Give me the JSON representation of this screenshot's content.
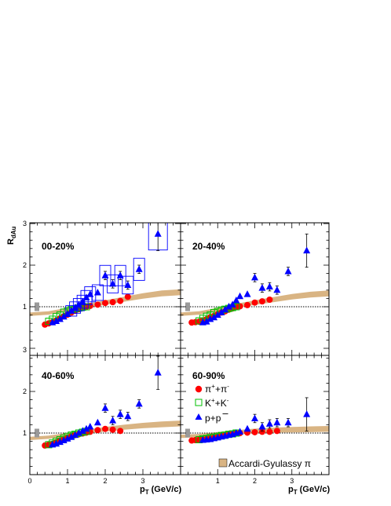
{
  "y_axis_title": "R",
  "y_axis_title_sub": "dAu",
  "x_axis_title": "p",
  "x_axis_title_sub": "T",
  "x_axis_title_unit": "(GeV/c)",
  "chart_data": [
    {
      "type": "scatter",
      "title": "00-20%",
      "xlim": [
        0,
        4.0
      ],
      "ylim": [
        0,
        3.25
      ],
      "x_ticks": [
        1,
        2,
        3
      ],
      "y_ticks": [
        1,
        2,
        3
      ],
      "reference_line": 1,
      "series": [
        {
          "name": "π⁺+π⁻",
          "marker": "circle",
          "color": "#ff0000",
          "x": [
            0.4,
            0.5,
            0.6,
            0.7,
            0.8,
            0.9,
            1.0,
            1.1,
            1.2,
            1.3,
            1.4,
            1.5,
            1.6,
            1.8,
            2.0,
            2.2,
            2.4,
            2.6
          ],
          "y": [
            0.57,
            0.6,
            0.63,
            0.67,
            0.72,
            0.77,
            0.81,
            0.86,
            0.9,
            0.94,
            0.97,
            1.0,
            1.02,
            1.05,
            1.09,
            1.11,
            1.14,
            1.24
          ]
        },
        {
          "name": "K⁺+K⁻",
          "marker": "open-square",
          "color": "#00c000",
          "x": [
            0.5,
            0.6,
            0.7,
            0.8,
            0.9,
            1.0,
            1.1,
            1.2,
            1.3,
            1.4,
            1.5
          ],
          "y": [
            0.65,
            0.7,
            0.76,
            0.8,
            0.87,
            0.9,
            0.93,
            0.95,
            0.97,
            0.99,
            1.0
          ]
        },
        {
          "name": "p+p̄",
          "marker": "triangle",
          "color": "#0000ff",
          "x": [
            0.6,
            0.7,
            0.8,
            0.9,
            1.0,
            1.1,
            1.2,
            1.3,
            1.4,
            1.5,
            1.6,
            1.8,
            2.0,
            2.2,
            2.4,
            2.6,
            2.9,
            3.4
          ],
          "y": [
            0.62,
            0.65,
            0.7,
            0.76,
            0.82,
            0.9,
            0.98,
            1.05,
            1.12,
            1.22,
            1.3,
            1.34,
            1.75,
            1.55,
            1.75,
            1.52,
            1.9,
            2.75
          ]
        }
      ]
    },
    {
      "type": "scatter",
      "title": "20-40%",
      "xlim": [
        0,
        4.0
      ],
      "ylim": [
        0,
        3.25
      ],
      "x_ticks": [
        1,
        2,
        3
      ],
      "y_ticks": [
        1,
        2,
        3
      ],
      "reference_line": 1,
      "series": [
        {
          "name": "π⁺+π⁻",
          "marker": "circle",
          "color": "#ff0000",
          "x": [
            0.3,
            0.4,
            0.5,
            0.6,
            0.7,
            0.8,
            0.9,
            1.0,
            1.1,
            1.2,
            1.3,
            1.4,
            1.5,
            1.6,
            1.8,
            2.0,
            2.2,
            2.4
          ],
          "y": [
            0.62,
            0.63,
            0.64,
            0.67,
            0.7,
            0.75,
            0.78,
            0.82,
            0.86,
            0.89,
            0.93,
            0.96,
            0.99,
            1.01,
            1.04,
            1.1,
            1.13,
            1.17
          ]
        },
        {
          "name": "K⁺+K⁻",
          "marker": "open-square",
          "color": "#00c000",
          "x": [
            0.5,
            0.6,
            0.7,
            0.8,
            0.9,
            1.0,
            1.1,
            1.2,
            1.3,
            1.4,
            1.5
          ],
          "y": [
            0.66,
            0.72,
            0.77,
            0.8,
            0.86,
            0.89,
            0.92,
            0.94,
            0.96,
            0.98,
            1.0
          ]
        },
        {
          "name": "p+p̄",
          "marker": "triangle",
          "color": "#0000ff",
          "x": [
            0.6,
            0.7,
            0.8,
            0.9,
            1.0,
            1.1,
            1.2,
            1.3,
            1.4,
            1.5,
            1.6,
            1.8,
            2.0,
            2.2,
            2.4,
            2.6,
            2.9,
            3.4
          ],
          "y": [
            0.62,
            0.64,
            0.7,
            0.74,
            0.8,
            0.86,
            0.93,
            1.0,
            1.05,
            1.15,
            1.25,
            1.3,
            1.7,
            1.45,
            1.48,
            1.4,
            1.85,
            2.35
          ]
        }
      ]
    },
    {
      "type": "scatter",
      "title": "40-60%",
      "xlim": [
        0,
        4.0
      ],
      "ylim": [
        0,
        3.25
      ],
      "x_ticks": [
        1,
        2,
        3
      ],
      "y_ticks": [
        1,
        2,
        3
      ],
      "reference_line": 1,
      "series": [
        {
          "name": "π⁺+π⁻",
          "marker": "circle",
          "color": "#ff0000",
          "x": [
            0.4,
            0.5,
            0.6,
            0.7,
            0.8,
            0.9,
            1.0,
            1.1,
            1.2,
            1.3,
            1.4,
            1.5,
            1.6,
            1.8,
            2.0,
            2.2,
            2.4
          ],
          "y": [
            0.7,
            0.72,
            0.74,
            0.78,
            0.82,
            0.85,
            0.88,
            0.92,
            0.95,
            0.97,
            0.99,
            1.01,
            1.03,
            1.07,
            1.1,
            1.08,
            1.05
          ]
        },
        {
          "name": "K⁺+K⁻",
          "marker": "open-square",
          "color": "#00c000",
          "x": [
            0.5,
            0.6,
            0.7,
            0.8,
            0.9,
            1.0,
            1.1,
            1.2,
            1.3,
            1.4,
            1.5
          ],
          "y": [
            0.72,
            0.76,
            0.8,
            0.84,
            0.88,
            0.92,
            0.95,
            0.97,
            1.0,
            1.02,
            1.04
          ]
        },
        {
          "name": "p+p̄",
          "marker": "triangle",
          "color": "#0000ff",
          "x": [
            0.6,
            0.7,
            0.8,
            0.9,
            1.0,
            1.1,
            1.2,
            1.3,
            1.4,
            1.5,
            1.6,
            1.8,
            2.0,
            2.2,
            2.4,
            2.6,
            2.9,
            3.4
          ],
          "y": [
            0.72,
            0.74,
            0.78,
            0.82,
            0.86,
            0.9,
            0.95,
            1.0,
            1.05,
            1.1,
            1.15,
            1.25,
            1.6,
            1.3,
            1.45,
            1.4,
            1.7,
            2.45
          ]
        }
      ]
    },
    {
      "type": "scatter",
      "title": "60-90%",
      "xlim": [
        0,
        4.0
      ],
      "ylim": [
        0,
        3.25
      ],
      "x_ticks": [
        1,
        2,
        3
      ],
      "y_ticks": [
        1,
        2,
        3
      ],
      "reference_line": 1,
      "series": [
        {
          "name": "π⁺+π⁻",
          "marker": "circle",
          "color": "#ff0000",
          "x": [
            0.3,
            0.4,
            0.5,
            0.6,
            0.7,
            0.8,
            0.9,
            1.0,
            1.1,
            1.2,
            1.3,
            1.4,
            1.5,
            1.6,
            1.8,
            2.0,
            2.2,
            2.4,
            2.6
          ],
          "y": [
            0.82,
            0.83,
            0.84,
            0.85,
            0.86,
            0.88,
            0.89,
            0.91,
            0.93,
            0.95,
            0.97,
            0.98,
            0.99,
            1.0,
            1.01,
            1.02,
            1.03,
            1.03,
            1.05
          ]
        },
        {
          "name": "K⁺+K⁻",
          "marker": "open-square",
          "color": "#00c000",
          "x": [
            0.5,
            0.6,
            0.7,
            0.8,
            0.9,
            1.0,
            1.1,
            1.2,
            1.3,
            1.4,
            1.5
          ],
          "y": [
            0.84,
            0.86,
            0.87,
            0.89,
            0.9,
            0.92,
            0.94,
            0.95,
            0.97,
            0.98,
            1.0
          ]
        },
        {
          "name": "p+p̄",
          "marker": "triangle",
          "color": "#0000ff",
          "x": [
            0.6,
            0.7,
            0.8,
            0.9,
            1.0,
            1.1,
            1.2,
            1.3,
            1.4,
            1.5,
            1.6,
            1.8,
            2.0,
            2.2,
            2.4,
            2.6,
            2.9,
            3.4
          ],
          "y": [
            0.83,
            0.84,
            0.85,
            0.87,
            0.89,
            0.91,
            0.93,
            0.95,
            0.97,
            1.0,
            1.03,
            1.1,
            1.35,
            1.15,
            1.22,
            1.25,
            1.25,
            1.45
          ]
        }
      ]
    }
  ],
  "legend": {
    "pion": "π",
    "pion_sup": "+",
    "pion_mid": "+π",
    "pion_sup2": "-",
    "kaon": "K",
    "kaon_sup": "+",
    "kaon_mid": "+K",
    "kaon_sup2": "-",
    "proton": "p+",
    "antiproton": "p",
    "theory": "Accardi-Gyulassy π"
  },
  "colors": {
    "pion": "#ff0000",
    "kaon": "#00c000",
    "proton": "#0000ff",
    "band": "#d9b483",
    "norm_box": "#999999"
  }
}
